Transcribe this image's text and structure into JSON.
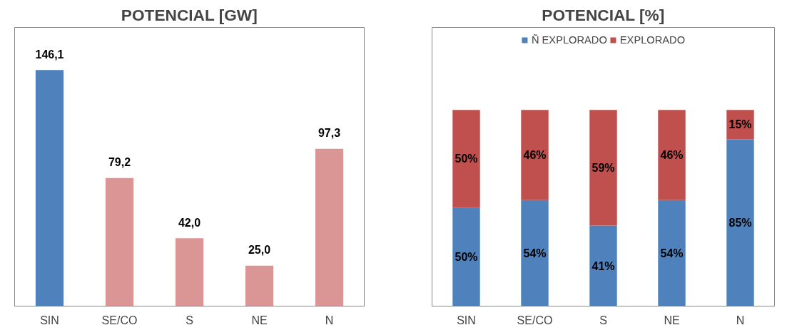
{
  "chart_data": [
    {
      "type": "bar",
      "title": "POTENCIAL [GW]",
      "categories": [
        "SIN",
        "SE/CO",
        "S",
        "NE",
        "N"
      ],
      "values": [
        146.1,
        79.2,
        42.0,
        25.0,
        97.3
      ],
      "colors": [
        "#4f81bd",
        "#d99694",
        "#d99694",
        "#d99694",
        "#d99694"
      ],
      "value_labels": [
        "146,1",
        "79,2",
        "42,0",
        "25,0",
        "97,3"
      ],
      "grid": false
    },
    {
      "type": "bar",
      "title": "POTENCIAL [%]",
      "categories": [
        "SIN",
        "SE/CO",
        "S",
        "NE",
        "N"
      ],
      "stacked": true,
      "legend": "top",
      "grid": false,
      "series": [
        {
          "name": "Ñ EXPLORADO",
          "color": "#4f81bd",
          "values": [
            50,
            54,
            41,
            54,
            85
          ],
          "value_labels": [
            "50%",
            "54%",
            "41%",
            "54%",
            "85%"
          ]
        },
        {
          "name": "EXPLORADO",
          "color": "#c0504d",
          "values": [
            50,
            46,
            59,
            46,
            15
          ],
          "value_labels": [
            "50%",
            "46%",
            "59%",
            "46%",
            "15%"
          ]
        }
      ]
    }
  ]
}
